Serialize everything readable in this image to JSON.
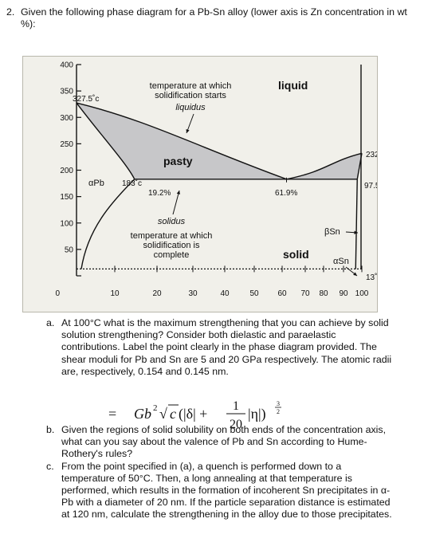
{
  "question": {
    "number": "2.",
    "text": "Given the following phase diagram for a Pb-Sn alloy (lower axis is Zn concentration in wt %):"
  },
  "chart_data": {
    "type": "phase-diagram",
    "title": "",
    "xlabel": "",
    "ylabel": "",
    "ylim": [
      0,
      400
    ],
    "xlim": [
      0,
      100
    ],
    "y_ticks": [
      "400",
      "350",
      "300",
      "250",
      "200",
      "150",
      "100",
      "50",
      "0"
    ],
    "x_ticks": [
      "10",
      "20",
      "30",
      "40",
      "50",
      "60",
      "70",
      "80",
      "90",
      "100"
    ],
    "points": {
      "pb_melting": {
        "x": 0,
        "y": 327.5,
        "label": "327.5˚c"
      },
      "sn_melting": {
        "x": 100,
        "y": 232,
        "label": "232˚c"
      },
      "eutectic": {
        "x": 61.9,
        "y": 183,
        "label": "61.9%"
      },
      "pb_solubility": {
        "x": 19.2,
        "y": 183,
        "label": "19.2%"
      },
      "sn_solubility": {
        "x": 97.5,
        "y": 183,
        "label": "97.5%"
      },
      "eutectic_temp": {
        "label": "183˚c"
      },
      "low_temp": {
        "y": 13,
        "label": "13˚c"
      }
    },
    "regions": {
      "liquid": "liquid",
      "pasty": "pasty",
      "solid": "solid",
      "alpha_pb": "αPb",
      "beta_sn": "βSn",
      "alpha_sn": "αSn"
    },
    "annotations": {
      "liquidus_line1": "temperature at which",
      "liquidus_line2": "solidification starts",
      "liquidus_line3": "liquidus",
      "solidus_line1": "solidus",
      "solidus_line2": "temperature at which",
      "solidus_line3": "solidification is",
      "solidus_line4": "complete"
    },
    "colors": {
      "pasty_fill": "#c7c7c9",
      "background": "#f1f0ea"
    }
  },
  "parts": [
    {
      "label": "a.",
      "text": "At 100°C what is the maximum strengthening that you can achieve by solid solution strengthening? Consider both dielastic and paraelastic contributions. Label the point clearly in the phase diagram provided. The shear moduli for Pb and Sn are 5 and 20 GPa respectively. The atomic radii are, respectively, 0.154 and 0.145 nm."
    },
    {
      "label": "b.",
      "text": "Given the regions of solid solubility on both ends of the concentration axis, what can you say about the valence of Pb and Sn according to Hume-Rothery's rules?"
    },
    {
      "label": "c.",
      "text": "From the point specified in (a), a quench is performed down to a temperature of 50°C. Then, a long annealing at that temperature is performed, which results in the formation of incoherent Sn precipitates in α-Pb with a diameter of 20 nm. If the particle separation distance is estimated at 120 nm, calculate the strengthening in the alloy due to those precipitates."
    }
  ],
  "formula": {
    "eq": "=",
    "lead": "Gb",
    "sq": "2",
    "root": "√",
    "c": "c",
    "open": "(|δ| +",
    "num": "1",
    "den": "20",
    "eta": "|η|)",
    "exp_num": "3",
    "exp_den": "2"
  }
}
